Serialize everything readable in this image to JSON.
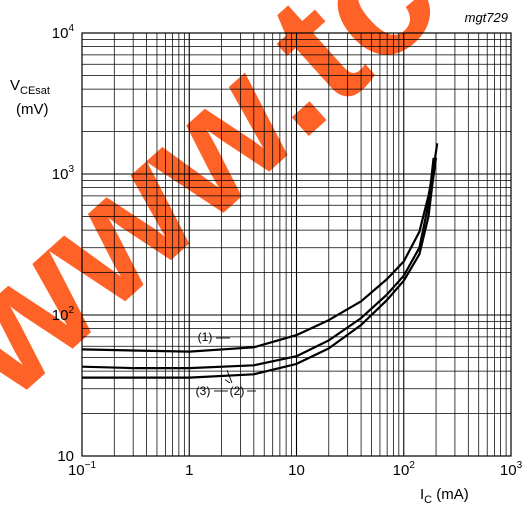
{
  "figure_code": "mgt729",
  "watermark": "www.tc",
  "chart_data": {
    "type": "line",
    "xscale": "log",
    "yscale": "log",
    "xlim": [
      0.1,
      1000
    ],
    "ylim": [
      10,
      10000
    ],
    "grid": true,
    "xlabel": {
      "main": "I",
      "sub": "C",
      "unit": " (mA)"
    },
    "ylabel": {
      "main": "V",
      "sub": "CEsat",
      "unit": "(mV)"
    },
    "xticks": [
      {
        "value": 0.1,
        "base": "10",
        "exp": "−1"
      },
      {
        "value": 1,
        "base": "1",
        "exp": ""
      },
      {
        "value": 10,
        "base": "10",
        "exp": ""
      },
      {
        "value": 100,
        "base": "10",
        "exp": "2"
      },
      {
        "value": 1000,
        "base": "10",
        "exp": "3"
      }
    ],
    "yticks": [
      {
        "value": 10,
        "base": "10",
        "exp": ""
      },
      {
        "value": 100,
        "base": "10",
        "exp": "2"
      },
      {
        "value": 1000,
        "base": "10",
        "exp": "3"
      },
      {
        "value": 10000,
        "base": "10",
        "exp": "4"
      }
    ],
    "series": [
      {
        "name": "(1)",
        "points": [
          [
            0.1,
            57
          ],
          [
            0.3,
            56
          ],
          [
            1,
            55
          ],
          [
            4,
            59
          ],
          [
            10,
            72
          ],
          [
            20,
            92
          ],
          [
            40,
            125
          ],
          [
            70,
            180
          ],
          [
            100,
            240
          ],
          [
            140,
            390
          ],
          [
            170,
            700
          ],
          [
            190,
            1100
          ],
          [
            205,
            1650
          ]
        ]
      },
      {
        "name": "(2)",
        "points": [
          [
            0.1,
            43
          ],
          [
            0.3,
            42
          ],
          [
            1,
            42
          ],
          [
            4,
            44
          ],
          [
            10,
            51
          ],
          [
            20,
            66
          ],
          [
            40,
            95
          ],
          [
            70,
            140
          ],
          [
            100,
            190
          ],
          [
            140,
            300
          ],
          [
            165,
            550
          ],
          [
            180,
            900
          ],
          [
            190,
            1300
          ]
        ]
      },
      {
        "name": "(3)",
        "points": [
          [
            0.1,
            36
          ],
          [
            0.3,
            36
          ],
          [
            1,
            36
          ],
          [
            4,
            38
          ],
          [
            10,
            45
          ],
          [
            20,
            58
          ],
          [
            40,
            85
          ],
          [
            70,
            128
          ],
          [
            100,
            175
          ],
          [
            140,
            270
          ],
          [
            170,
            500
          ],
          [
            185,
            850
          ],
          [
            200,
            1300
          ]
        ]
      }
    ]
  }
}
